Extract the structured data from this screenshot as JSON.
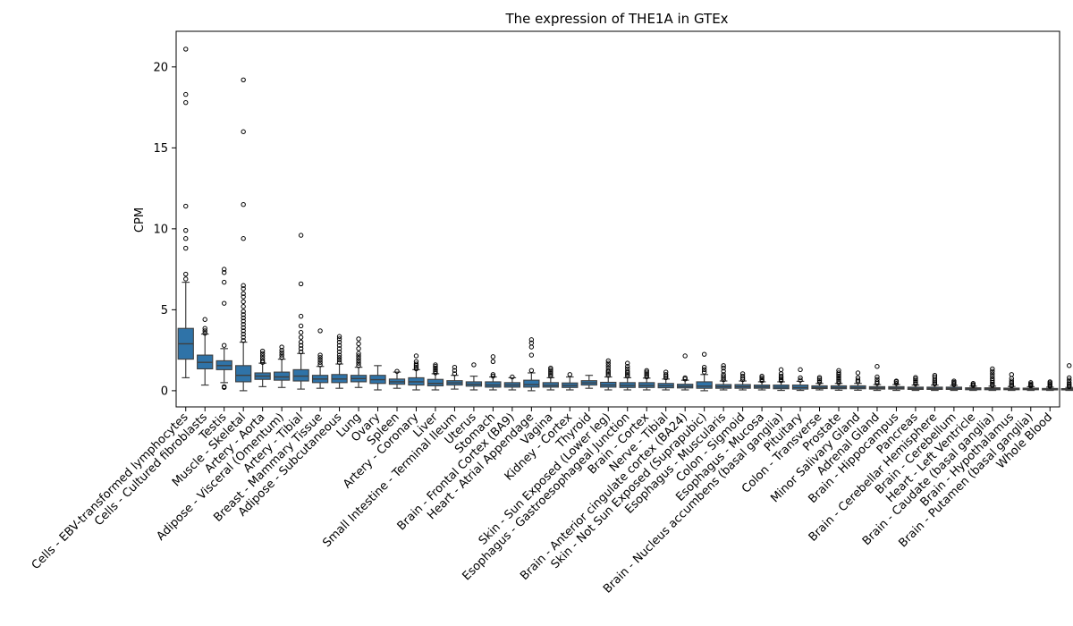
{
  "chart_data": {
    "type": "boxplot",
    "title": "The expression of THE1A in GTEx",
    "xlabel": "",
    "ylabel": "CPM",
    "ylim": [
      -1.0,
      22.2
    ],
    "yticks": [
      0,
      5,
      10,
      15,
      20
    ],
    "grid": false,
    "box_color": "#2f73a8",
    "categories": [
      "Cells - EBV-transformed lymphocytes",
      "Cells - Cultured fibroblasts",
      "Testis",
      "Muscle - Skeletal",
      "Artery - Aorta",
      "Adipose - Visceral (Omentum)",
      "Artery - Tibial",
      "Breast - Mammary Tissue",
      "Adipose - Subcutaneous",
      "Lung",
      "Ovary",
      "Spleen",
      "Artery - Coronary",
      "Liver",
      "Small Intestine - Terminal Ileum",
      "Uterus",
      "Stomach",
      "Brain - Frontal Cortex (BA9)",
      "Heart - Atrial Appendage",
      "Vagina",
      "Kidney - Cortex",
      "Thyroid",
      "Skin - Sun Exposed (Lower leg)",
      "Esophagus - Gastroesophageal Junction",
      "Brain - Cortex",
      "Nerve - Tibial",
      "Brain - Anterior cingulate cortex (BA24)",
      "Skin - Not Sun Exposed (Suprapubic)",
      "Esophagus - Muscularis",
      "Colon - Sigmoid",
      "Esophagus - Mucosa",
      "Brain - Nucleus accumbens (basal ganglia)",
      "Pituitary",
      "Colon - Transverse",
      "Prostate",
      "Minor Salivary Gland",
      "Adrenal Gland",
      "Brain - Hippocampus",
      "Pancreas",
      "Brain - Cerebellar Hemisphere",
      "Brain - Cerebellum",
      "Heart - Left Ventricle",
      "Brain - Caudate (basal ganglia)",
      "Brain - Hypothalamus",
      "Brain - Putamen (basal ganglia)",
      "Whole Blood"
    ],
    "boxes": [
      {
        "whislo": 0.8,
        "q1": 1.95,
        "med": 2.9,
        "q3": 3.85,
        "whishi": 6.7,
        "fliers": [
          6.9,
          7.2,
          8.8,
          9.4,
          9.9,
          11.4,
          17.8,
          18.3,
          21.1
        ]
      },
      {
        "whislo": 0.35,
        "q1": 1.35,
        "med": 1.75,
        "q3": 2.2,
        "whishi": 3.5,
        "fliers": [
          3.55,
          3.7,
          3.85,
          4.4
        ]
      },
      {
        "whislo": 0.5,
        "q1": 1.3,
        "med": 1.55,
        "q3": 1.85,
        "whishi": 2.6,
        "fliers": [
          0.2,
          0.25,
          2.8,
          5.4,
          6.7,
          7.3,
          7.5
        ]
      },
      {
        "whislo": 0.0,
        "q1": 0.55,
        "med": 0.95,
        "q3": 1.55,
        "whishi": 3.0,
        "fliers": [
          3.1,
          3.3,
          3.5,
          3.7,
          3.9,
          4.1,
          4.3,
          4.5,
          4.7,
          4.9,
          5.2,
          5.5,
          5.8,
          6.0,
          6.3,
          6.5,
          9.4,
          11.5,
          16.0,
          19.2
        ]
      },
      {
        "whislo": 0.25,
        "q1": 0.7,
        "med": 0.9,
        "q3": 1.1,
        "whishi": 1.7,
        "fliers": [
          1.75,
          1.85,
          2.0,
          2.15,
          2.3,
          2.45
        ]
      },
      {
        "whislo": 0.2,
        "q1": 0.65,
        "med": 0.85,
        "q3": 1.15,
        "whishi": 1.95,
        "fliers": [
          2.05,
          2.2,
          2.35,
          2.5,
          2.7
        ]
      },
      {
        "whislo": 0.1,
        "q1": 0.6,
        "med": 0.9,
        "q3": 1.3,
        "whishi": 2.3,
        "fliers": [
          2.4,
          2.6,
          2.8,
          3.0,
          3.3,
          3.6,
          4.0,
          4.6,
          6.6,
          9.6
        ]
      },
      {
        "whislo": 0.15,
        "q1": 0.5,
        "med": 0.72,
        "q3": 0.95,
        "whishi": 1.5,
        "fliers": [
          1.6,
          1.75,
          1.9,
          2.05,
          2.2,
          3.7
        ]
      },
      {
        "whislo": 0.15,
        "q1": 0.5,
        "med": 0.72,
        "q3": 1.0,
        "whishi": 1.65,
        "fliers": [
          1.75,
          1.9,
          2.05,
          2.2,
          2.4,
          2.6,
          2.8,
          3.0,
          3.2,
          3.35
        ]
      },
      {
        "whislo": 0.2,
        "q1": 0.55,
        "med": 0.75,
        "q3": 0.95,
        "whishi": 1.45,
        "fliers": [
          1.55,
          1.7,
          1.85,
          2.0,
          2.15,
          2.3,
          2.6,
          2.9,
          3.2
        ]
      },
      {
        "whislo": 0.05,
        "q1": 0.45,
        "med": 0.68,
        "q3": 0.95,
        "whishi": 1.55,
        "fliers": []
      },
      {
        "whislo": 0.15,
        "q1": 0.4,
        "med": 0.55,
        "q3": 0.72,
        "whishi": 1.15,
        "fliers": [
          1.2
        ]
      },
      {
        "whislo": 0.05,
        "q1": 0.35,
        "med": 0.55,
        "q3": 0.8,
        "whishi": 1.3,
        "fliers": [
          1.35,
          1.45,
          1.55,
          1.65,
          1.8,
          2.15
        ]
      },
      {
        "whislo": 0.05,
        "q1": 0.3,
        "med": 0.45,
        "q3": 0.7,
        "whishi": 1.05,
        "fliers": [
          1.1,
          1.2,
          1.3,
          1.4,
          1.5,
          1.6
        ]
      },
      {
        "whislo": 0.1,
        "q1": 0.35,
        "med": 0.48,
        "q3": 0.62,
        "whishi": 0.95,
        "fliers": [
          1.05,
          1.25,
          1.45
        ]
      },
      {
        "whislo": 0.05,
        "q1": 0.28,
        "med": 0.4,
        "q3": 0.55,
        "whishi": 0.9,
        "fliers": [
          1.6
        ]
      },
      {
        "whislo": 0.05,
        "q1": 0.22,
        "med": 0.35,
        "q3": 0.55,
        "whishi": 0.85,
        "fliers": [
          0.9,
          1.0,
          1.8,
          2.1
        ]
      },
      {
        "whislo": 0.05,
        "q1": 0.22,
        "med": 0.35,
        "q3": 0.5,
        "whishi": 0.8,
        "fliers": [
          0.85
        ]
      },
      {
        "whislo": 0.0,
        "q1": 0.22,
        "med": 0.38,
        "q3": 0.65,
        "whishi": 1.1,
        "fliers": [
          1.25,
          2.2,
          2.7,
          2.95,
          3.15
        ]
      },
      {
        "whislo": 0.05,
        "q1": 0.22,
        "med": 0.33,
        "q3": 0.5,
        "whishi": 0.8,
        "fliers": [
          0.9,
          1.0,
          1.1,
          1.2,
          1.3,
          1.4
        ]
      },
      {
        "whislo": 0.05,
        "q1": 0.2,
        "med": 0.32,
        "q3": 0.48,
        "whishi": 0.85,
        "fliers": [
          1.0
        ]
      },
      {
        "whislo": 0.15,
        "q1": 0.35,
        "med": 0.48,
        "q3": 0.62,
        "whishi": 0.95,
        "fliers": []
      },
      {
        "whislo": 0.05,
        "q1": 0.22,
        "med": 0.35,
        "q3": 0.52,
        "whishi": 0.85,
        "fliers": [
          0.95,
          1.05,
          1.15,
          1.25,
          1.4,
          1.55,
          1.7,
          1.85
        ]
      },
      {
        "whislo": 0.05,
        "q1": 0.2,
        "med": 0.32,
        "q3": 0.5,
        "whishi": 0.8,
        "fliers": [
          0.9,
          1.0,
          1.1,
          1.2,
          1.35,
          1.5,
          1.7
        ]
      },
      {
        "whislo": 0.05,
        "q1": 0.2,
        "med": 0.32,
        "q3": 0.5,
        "whishi": 0.78,
        "fliers": [
          0.85,
          0.95,
          1.05,
          1.15,
          1.25
        ]
      },
      {
        "whislo": 0.05,
        "q1": 0.18,
        "med": 0.3,
        "q3": 0.45,
        "whishi": 0.72,
        "fliers": [
          0.8,
          0.9,
          1.0,
          1.15
        ]
      },
      {
        "whislo": 0.05,
        "q1": 0.17,
        "med": 0.27,
        "q3": 0.4,
        "whishi": 0.65,
        "fliers": [
          0.72,
          0.8,
          2.15
        ]
      },
      {
        "whislo": 0.0,
        "q1": 0.15,
        "med": 0.28,
        "q3": 0.55,
        "whishi": 1.0,
        "fliers": [
          1.15,
          1.3,
          1.45,
          2.25
        ]
      },
      {
        "whislo": 0.05,
        "q1": 0.15,
        "med": 0.25,
        "q3": 0.38,
        "whishi": 0.6,
        "fliers": [
          0.68,
          0.78,
          0.88,
          1.0,
          1.2,
          1.4,
          1.55
        ]
      },
      {
        "whislo": 0.05,
        "q1": 0.15,
        "med": 0.25,
        "q3": 0.38,
        "whishi": 0.6,
        "fliers": [
          0.68,
          0.78,
          0.9,
          1.05
        ]
      },
      {
        "whislo": 0.05,
        "q1": 0.15,
        "med": 0.24,
        "q3": 0.35,
        "whishi": 0.55,
        "fliers": [
          0.62,
          0.7,
          0.8,
          0.9
        ]
      },
      {
        "whislo": 0.02,
        "q1": 0.12,
        "med": 0.22,
        "q3": 0.35,
        "whishi": 0.55,
        "fliers": [
          0.62,
          0.7,
          0.8,
          0.9,
          1.05,
          1.3
        ]
      },
      {
        "whislo": 0.02,
        "q1": 0.1,
        "med": 0.2,
        "q3": 0.35,
        "whishi": 0.58,
        "fliers": [
          0.65,
          0.8,
          1.3
        ]
      },
      {
        "whislo": 0.05,
        "q1": 0.13,
        "med": 0.2,
        "q3": 0.3,
        "whishi": 0.45,
        "fliers": [
          0.52,
          0.62,
          0.72,
          0.82
        ]
      },
      {
        "whislo": 0.03,
        "q1": 0.12,
        "med": 0.2,
        "q3": 0.3,
        "whishi": 0.45,
        "fliers": [
          0.5,
          0.6,
          0.7,
          0.8,
          0.9,
          1.0,
          1.1,
          1.25
        ]
      },
      {
        "whislo": 0.03,
        "q1": 0.12,
        "med": 0.2,
        "q3": 0.3,
        "whishi": 0.45,
        "fliers": [
          0.55,
          0.65,
          0.8,
          1.1
        ]
      },
      {
        "whislo": 0.02,
        "q1": 0.1,
        "med": 0.17,
        "q3": 0.25,
        "whishi": 0.38,
        "fliers": [
          0.45,
          0.55,
          0.7,
          0.85,
          1.5
        ]
      },
      {
        "whislo": 0.02,
        "q1": 0.1,
        "med": 0.17,
        "q3": 0.25,
        "whishi": 0.38,
        "fliers": [
          0.45,
          0.55,
          0.6
        ]
      },
      {
        "whislo": 0.02,
        "q1": 0.08,
        "med": 0.14,
        "q3": 0.22,
        "whishi": 0.35,
        "fliers": [
          0.42,
          0.52,
          0.62,
          0.72,
          0.82
        ]
      },
      {
        "whislo": 0.02,
        "q1": 0.08,
        "med": 0.14,
        "q3": 0.22,
        "whishi": 0.35,
        "fliers": [
          0.42,
          0.5,
          0.6,
          0.72,
          0.85,
          0.95
        ]
      },
      {
        "whislo": 0.02,
        "q1": 0.08,
        "med": 0.14,
        "q3": 0.22,
        "whishi": 0.33,
        "fliers": [
          0.38,
          0.45,
          0.52,
          0.6
        ]
      },
      {
        "whislo": 0.02,
        "q1": 0.06,
        "med": 0.12,
        "q3": 0.18,
        "whishi": 0.28,
        "fliers": [
          0.32,
          0.38,
          0.45
        ]
      },
      {
        "whislo": 0.02,
        "q1": 0.06,
        "med": 0.12,
        "q3": 0.18,
        "whishi": 0.28,
        "fliers": [
          0.32,
          0.4,
          0.5,
          0.62,
          0.75,
          0.9,
          1.05,
          1.2,
          1.35
        ]
      },
      {
        "whislo": 0.02,
        "q1": 0.06,
        "med": 0.1,
        "q3": 0.16,
        "whishi": 0.26,
        "fliers": [
          0.3,
          0.38,
          0.48,
          0.6,
          0.75,
          1.0
        ]
      },
      {
        "whislo": 0.02,
        "q1": 0.06,
        "med": 0.1,
        "q3": 0.16,
        "whishi": 0.25,
        "fliers": [
          0.3,
          0.35,
          0.42,
          0.5
        ]
      },
      {
        "whislo": 0.02,
        "q1": 0.05,
        "med": 0.09,
        "q3": 0.14,
        "whishi": 0.22,
        "fliers": [
          0.27,
          0.33,
          0.4,
          0.48,
          0.55
        ]
      },
      {
        "whislo": 0.02,
        "q1": 0.05,
        "med": 0.08,
        "q3": 0.13,
        "whishi": 0.2,
        "fliers": [
          0.25,
          0.32,
          0.4,
          0.5,
          0.65,
          0.8,
          1.55
        ]
      }
    ]
  }
}
